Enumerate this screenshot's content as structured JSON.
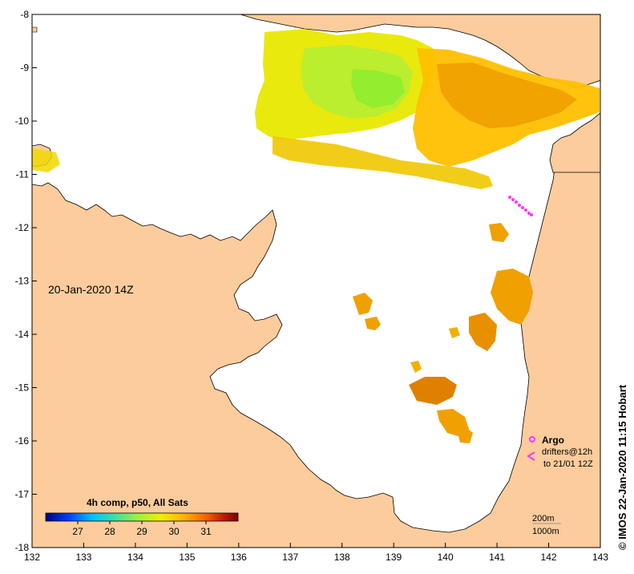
{
  "map": {
    "timestamp_label": "20-Jan-2020 14Z",
    "credit": "© IMOS 22-Jan-2020 11:15 Hobart",
    "x_ticks": [
      "132",
      "133",
      "134",
      "135",
      "136",
      "137",
      "138",
      "139",
      "140",
      "141",
      "142",
      "143"
    ],
    "y_ticks": [
      "-8",
      "-9",
      "-10",
      "-11",
      "-12",
      "-13",
      "-14",
      "-15",
      "-16",
      "-17",
      "-18"
    ],
    "x_range": [
      132,
      143
    ],
    "y_range": [
      -18,
      -8
    ],
    "colors": {
      "land": "#fccc9c",
      "sea_no_data": "#ffffff",
      "argo": "#ff33ff",
      "coast": "#000000"
    }
  },
  "colorbar": {
    "title": "4h comp, p50, All Sats",
    "ticks": [
      "27",
      "28",
      "29",
      "30",
      "31"
    ],
    "range": [
      26.0,
      32.0
    ],
    "stops": [
      "#000080",
      "#0040ff",
      "#00c0ff",
      "#40e0a0",
      "#a0f040",
      "#f0f000",
      "#ffb000",
      "#f06000",
      "#c02000",
      "#800000"
    ]
  },
  "legend": {
    "argo_label": "Argo",
    "drifters_label_1": "drifters@12h",
    "drifters_label_2": "to 21/01 12Z",
    "depth_200": "200m",
    "depth_1000": "1000m"
  }
}
